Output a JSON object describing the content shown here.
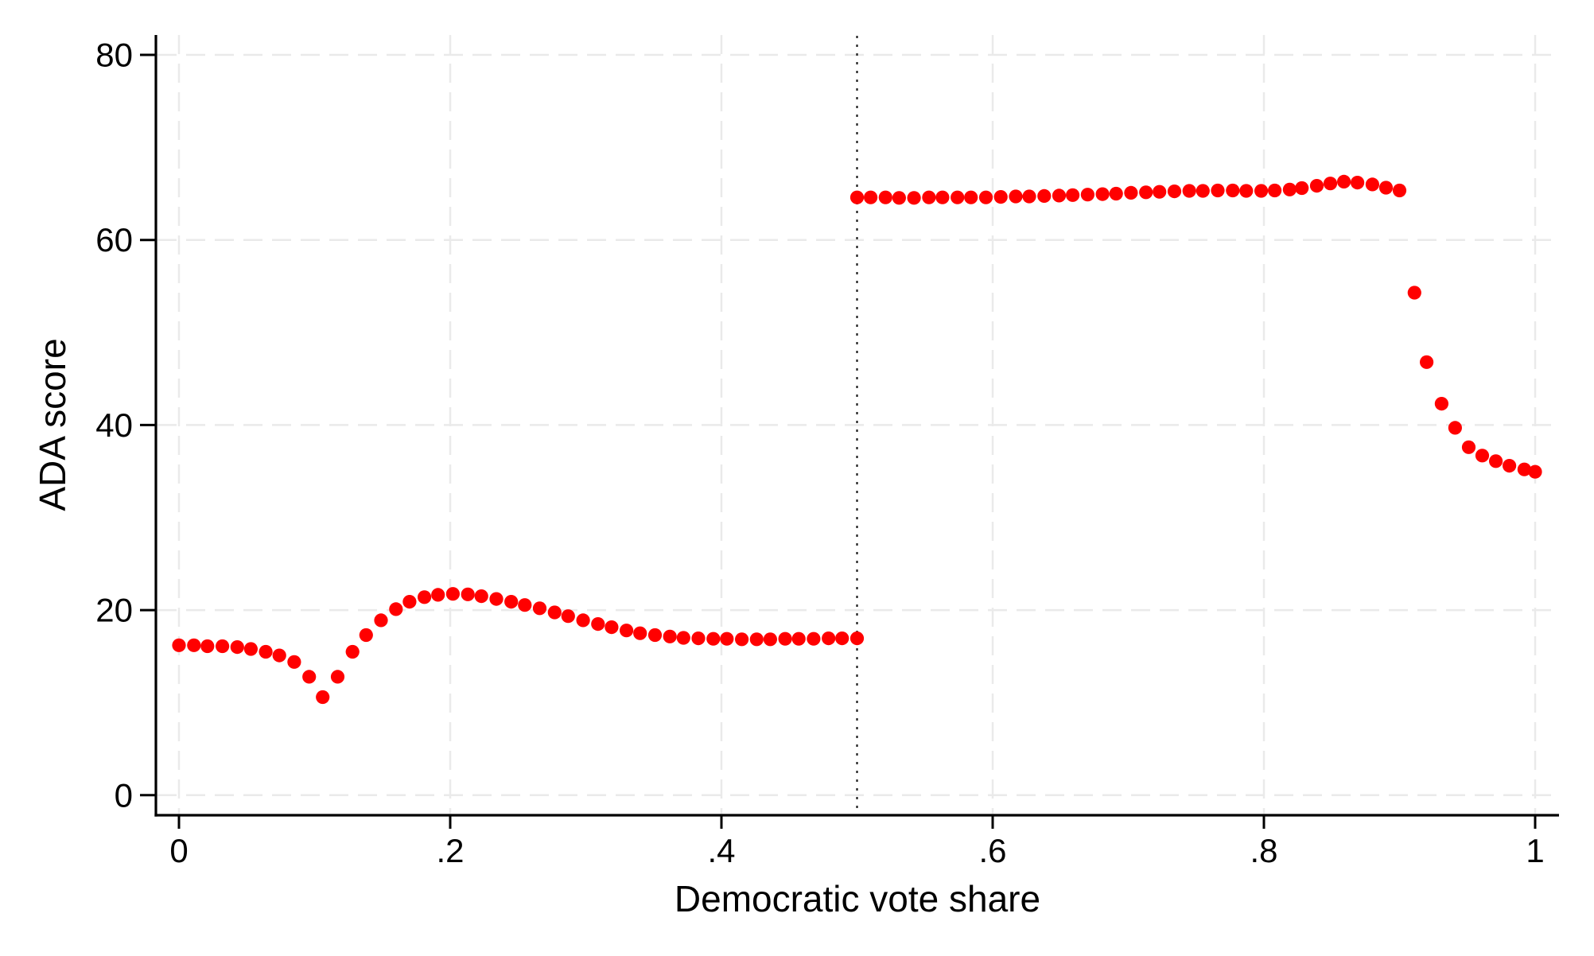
{
  "figure": {
    "kind": "statistical scatter plot (regression discontinuity style)",
    "background_color": "#ffffff"
  },
  "style": {
    "marker_color": "#FF0000",
    "axis_color": "#000000",
    "gridline_color": "#EAEAEA",
    "cutoff_line_color": "#1a1a1a"
  },
  "chart_data": {
    "type": "scatter",
    "title": "",
    "xlabel": "Democratic vote share",
    "ylabel": "ADA score",
    "xlim": [
      0,
      1
    ],
    "ylim": [
      0,
      80
    ],
    "x_ticks": [
      0,
      0.2,
      0.4,
      0.6,
      0.8,
      1
    ],
    "x_tick_labels": [
      "0",
      ".2",
      ".4",
      ".6",
      ".8",
      "1"
    ],
    "y_ticks": [
      0,
      20,
      40,
      60,
      80
    ],
    "y_tick_labels": [
      "0",
      "20",
      "40",
      "60",
      "80"
    ],
    "grid": "both axes, long-dash light gray at every labeled tick",
    "legend": "none",
    "cutoff_line_x": 0.5,
    "cutoff_line_style": "vertical dotted black line spanning plot height",
    "marker": "filled circle, radius ~8.6px, color #FF0000, near-touching (grid-spaced fitted values)",
    "series": [
      {
        "name": "fitted ADA score below cutoff",
        "points": [
          [
            0.0,
            16.2
          ],
          [
            0.011,
            16.2
          ],
          [
            0.021,
            16.1
          ],
          [
            0.032,
            16.1
          ],
          [
            0.043,
            16.0
          ],
          [
            0.053,
            15.8
          ],
          [
            0.064,
            15.5
          ],
          [
            0.074,
            15.1
          ],
          [
            0.085,
            14.4
          ],
          [
            0.096,
            12.8
          ],
          [
            0.106,
            10.6
          ],
          [
            0.117,
            12.8
          ],
          [
            0.128,
            15.5
          ],
          [
            0.138,
            17.3
          ],
          [
            0.149,
            18.9
          ],
          [
            0.16,
            20.1
          ],
          [
            0.17,
            20.9
          ],
          [
            0.181,
            21.4
          ],
          [
            0.191,
            21.65
          ],
          [
            0.202,
            21.75
          ],
          [
            0.213,
            21.7
          ],
          [
            0.223,
            21.5
          ],
          [
            0.234,
            21.2
          ],
          [
            0.245,
            20.9
          ],
          [
            0.255,
            20.55
          ],
          [
            0.266,
            20.2
          ],
          [
            0.277,
            19.75
          ],
          [
            0.287,
            19.35
          ],
          [
            0.298,
            18.9
          ],
          [
            0.309,
            18.5
          ],
          [
            0.319,
            18.15
          ],
          [
            0.33,
            17.8
          ],
          [
            0.34,
            17.5
          ],
          [
            0.351,
            17.3
          ],
          [
            0.362,
            17.15
          ],
          [
            0.372,
            17.0
          ],
          [
            0.383,
            16.95
          ],
          [
            0.394,
            16.9
          ],
          [
            0.404,
            16.9
          ],
          [
            0.415,
            16.85
          ],
          [
            0.426,
            16.85
          ],
          [
            0.436,
            16.85
          ],
          [
            0.447,
            16.9
          ],
          [
            0.457,
            16.9
          ],
          [
            0.468,
            16.9
          ],
          [
            0.479,
            16.95
          ],
          [
            0.489,
            16.95
          ],
          [
            0.5,
            16.95
          ]
        ]
      },
      {
        "name": "fitted ADA score above cutoff",
        "points": [
          [
            0.5,
            64.6
          ],
          [
            0.51,
            64.6
          ],
          [
            0.521,
            64.6
          ],
          [
            0.531,
            64.55
          ],
          [
            0.542,
            64.55
          ],
          [
            0.553,
            64.6
          ],
          [
            0.563,
            64.6
          ],
          [
            0.574,
            64.6
          ],
          [
            0.584,
            64.6
          ],
          [
            0.595,
            64.6
          ],
          [
            0.606,
            64.65
          ],
          [
            0.617,
            64.7
          ],
          [
            0.627,
            64.7
          ],
          [
            0.638,
            64.75
          ],
          [
            0.649,
            64.8
          ],
          [
            0.659,
            64.85
          ],
          [
            0.67,
            64.9
          ],
          [
            0.681,
            64.95
          ],
          [
            0.691,
            65.0
          ],
          [
            0.702,
            65.1
          ],
          [
            0.713,
            65.15
          ],
          [
            0.723,
            65.2
          ],
          [
            0.734,
            65.25
          ],
          [
            0.745,
            65.3
          ],
          [
            0.755,
            65.3
          ],
          [
            0.766,
            65.35
          ],
          [
            0.777,
            65.35
          ],
          [
            0.787,
            65.3
          ],
          [
            0.798,
            65.3
          ],
          [
            0.808,
            65.35
          ],
          [
            0.819,
            65.45
          ],
          [
            0.828,
            65.6
          ],
          [
            0.839,
            65.85
          ],
          [
            0.849,
            66.1
          ],
          [
            0.859,
            66.3
          ],
          [
            0.869,
            66.2
          ],
          [
            0.88,
            66.0
          ],
          [
            0.89,
            65.65
          ],
          [
            0.9,
            65.35
          ],
          [
            0.911,
            54.3
          ],
          [
            0.92,
            46.8
          ],
          [
            0.931,
            42.3
          ],
          [
            0.941,
            39.7
          ],
          [
            0.951,
            37.6
          ],
          [
            0.961,
            36.7
          ],
          [
            0.971,
            36.1
          ],
          [
            0.981,
            35.6
          ],
          [
            0.992,
            35.2
          ],
          [
            1.0,
            34.95
          ]
        ]
      }
    ]
  }
}
